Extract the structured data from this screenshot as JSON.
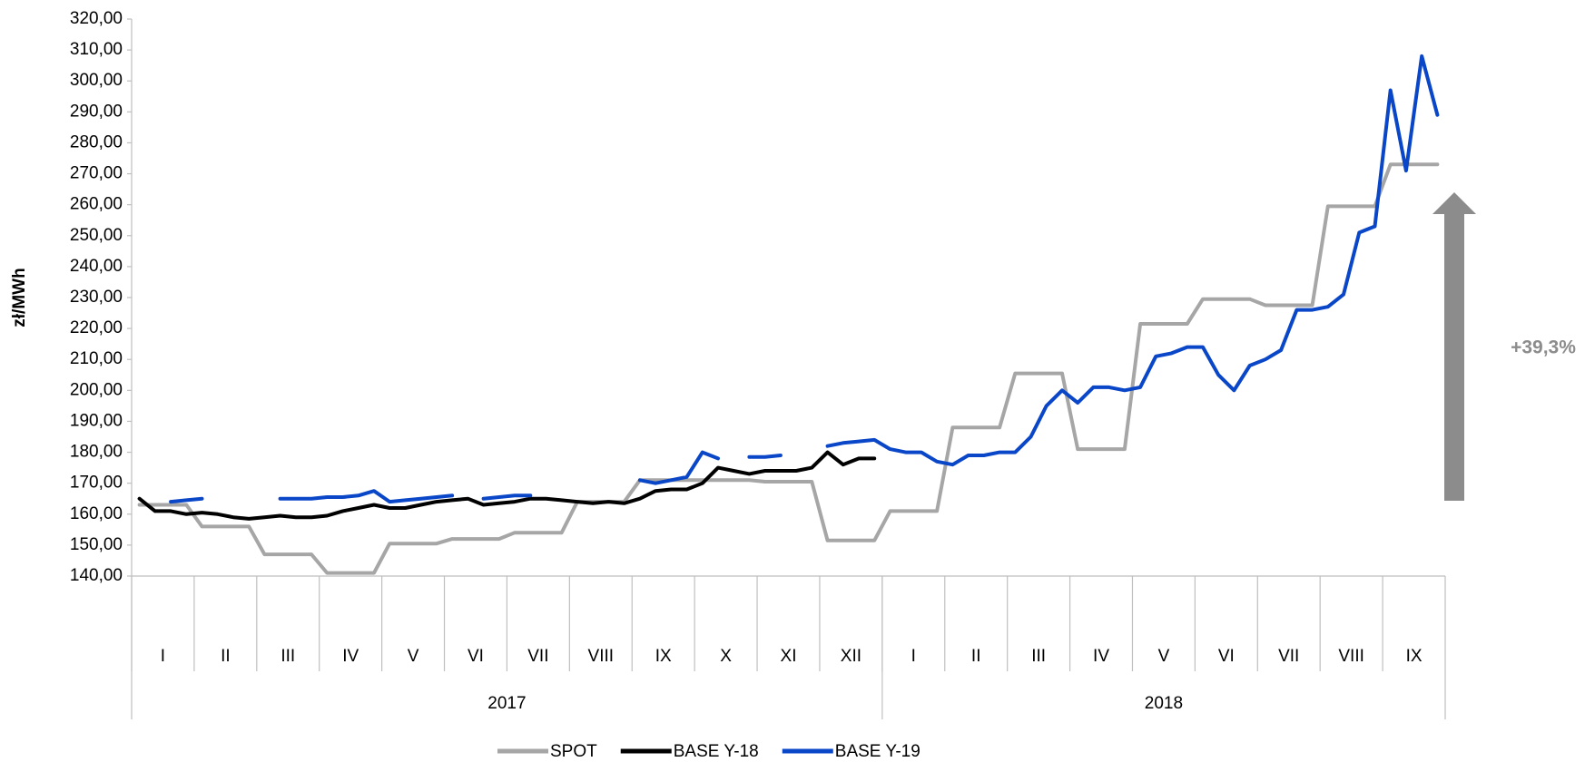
{
  "chart_data": {
    "type": "line",
    "y_label": "zł/MWh",
    "annotation": "+39,3%",
    "categories": [
      "I",
      "II",
      "III",
      "IV",
      "V",
      "VI",
      "VII",
      "VIII",
      "IX",
      "X",
      "XI",
      "XII",
      "I",
      "II",
      "III",
      "IV",
      "V",
      "VI",
      "VII",
      "VIII",
      "IX"
    ],
    "groups": [
      {
        "label": "2017",
        "categories": 12
      },
      {
        "label": "2018",
        "categories": 9
      }
    ],
    "ylim": [
      140,
      320
    ],
    "yticks": [
      {
        "value": 140,
        "label": "140,00"
      },
      {
        "value": 150,
        "label": "150,00"
      },
      {
        "value": 160,
        "label": "160,00"
      },
      {
        "value": 170,
        "label": "170,00"
      },
      {
        "value": 180,
        "label": "180,00"
      },
      {
        "value": 190,
        "label": "190,00"
      },
      {
        "value": 200,
        "label": "200,00"
      },
      {
        "value": 210,
        "label": "210,00"
      },
      {
        "value": 220,
        "label": "220,00"
      },
      {
        "value": 230,
        "label": "230,00"
      },
      {
        "value": 240,
        "label": "240,00"
      },
      {
        "value": 250,
        "label": "250,00"
      },
      {
        "value": 260,
        "label": "260,00"
      },
      {
        "value": 270,
        "label": "270,00"
      },
      {
        "value": 280,
        "label": "280,00"
      },
      {
        "value": 290,
        "label": "290,00"
      },
      {
        "value": 300,
        "label": "300,00"
      },
      {
        "value": 310,
        "label": "310,00"
      },
      {
        "value": 320,
        "label": "320,00"
      }
    ],
    "series": [
      {
        "name": "SPOT",
        "color": "#a6a6a6",
        "values": [
          [
            163,
            163,
            163,
            163
          ],
          [
            156,
            156,
            156,
            156
          ],
          [
            147,
            147,
            147,
            147
          ],
          [
            141,
            141,
            141,
            141
          ],
          [
            150.5,
            150.5,
            150.5,
            150.5
          ],
          [
            152,
            152,
            152,
            152
          ],
          [
            154,
            154,
            154,
            154
          ],
          [
            164,
            164,
            164,
            164
          ],
          [
            171,
            171,
            171,
            171
          ],
          [
            171,
            171,
            171,
            171
          ],
          [
            170.5,
            170.5,
            170.5,
            170.5
          ],
          [
            151.5,
            151.5,
            151.5,
            151.5
          ],
          [
            161,
            161,
            161,
            161
          ],
          [
            188,
            188,
            188,
            188
          ],
          [
            205.5,
            205.5,
            205.5,
            205.5
          ],
          [
            181,
            181,
            181,
            181
          ],
          [
            221.5,
            221.5,
            221.5,
            221.5
          ],
          [
            229.5,
            229.5,
            229.5,
            229.5
          ],
          [
            227.5,
            227.5,
            227.5,
            227.5
          ],
          [
            259.5,
            259.5,
            259.5,
            259.5
          ],
          [
            273,
            273,
            273,
            273
          ]
        ]
      },
      {
        "name": "BASE Y-18",
        "color": "#000000",
        "values": [
          [
            165,
            161,
            161,
            160
          ],
          [
            160.5,
            160,
            159,
            158.5
          ],
          [
            159,
            159.5,
            159,
            159
          ],
          [
            159.5,
            161,
            162,
            163
          ],
          [
            162,
            162,
            163,
            164
          ],
          [
            164.5,
            165,
            163,
            163.5
          ],
          [
            164,
            165,
            165,
            164.5
          ],
          [
            164,
            163.5,
            164,
            163.5
          ],
          [
            165,
            167.5,
            168,
            168
          ],
          [
            170,
            175,
            174,
            173
          ],
          [
            174,
            174,
            174,
            175
          ],
          [
            180,
            176,
            178,
            178
          ],
          [
            null,
            null,
            null,
            null
          ],
          [
            null,
            null,
            null,
            null
          ],
          [
            null,
            null,
            null,
            null
          ],
          [
            null,
            null,
            null,
            null
          ],
          [
            null,
            null,
            null,
            null
          ],
          [
            null,
            null,
            null,
            null
          ],
          [
            null,
            null,
            null,
            null
          ],
          [
            null,
            null,
            null,
            null
          ],
          [
            null,
            null,
            null,
            null
          ]
        ]
      },
      {
        "name": "BASE Y-19",
        "color": "#0a46c8",
        "values": [
          [
            165,
            null,
            164,
            164.5
          ],
          [
            165,
            null,
            null,
            null
          ],
          [
            null,
            165,
            165,
            165
          ],
          [
            165.5,
            165.5,
            166,
            167.5
          ],
          [
            164,
            164.5,
            165,
            165.5
          ],
          [
            166,
            null,
            165,
            165.5
          ],
          [
            166,
            166,
            null,
            null
          ],
          [
            165.5,
            null,
            166,
            null
          ],
          [
            171,
            170,
            171,
            172
          ],
          [
            180,
            178,
            null,
            178.5
          ],
          [
            178.5,
            179,
            null,
            null
          ],
          [
            182,
            183,
            183.5,
            184
          ],
          [
            181,
            180,
            180,
            177
          ],
          [
            176,
            179,
            179,
            180
          ],
          [
            180,
            185,
            195,
            200
          ],
          [
            196,
            201,
            201,
            200
          ],
          [
            201,
            211,
            212,
            214
          ],
          [
            214,
            205,
            200,
            208
          ],
          [
            210,
            213,
            226,
            226
          ],
          [
            227,
            231,
            251,
            253
          ],
          [
            297,
            271,
            308,
            289
          ]
        ]
      }
    ]
  }
}
